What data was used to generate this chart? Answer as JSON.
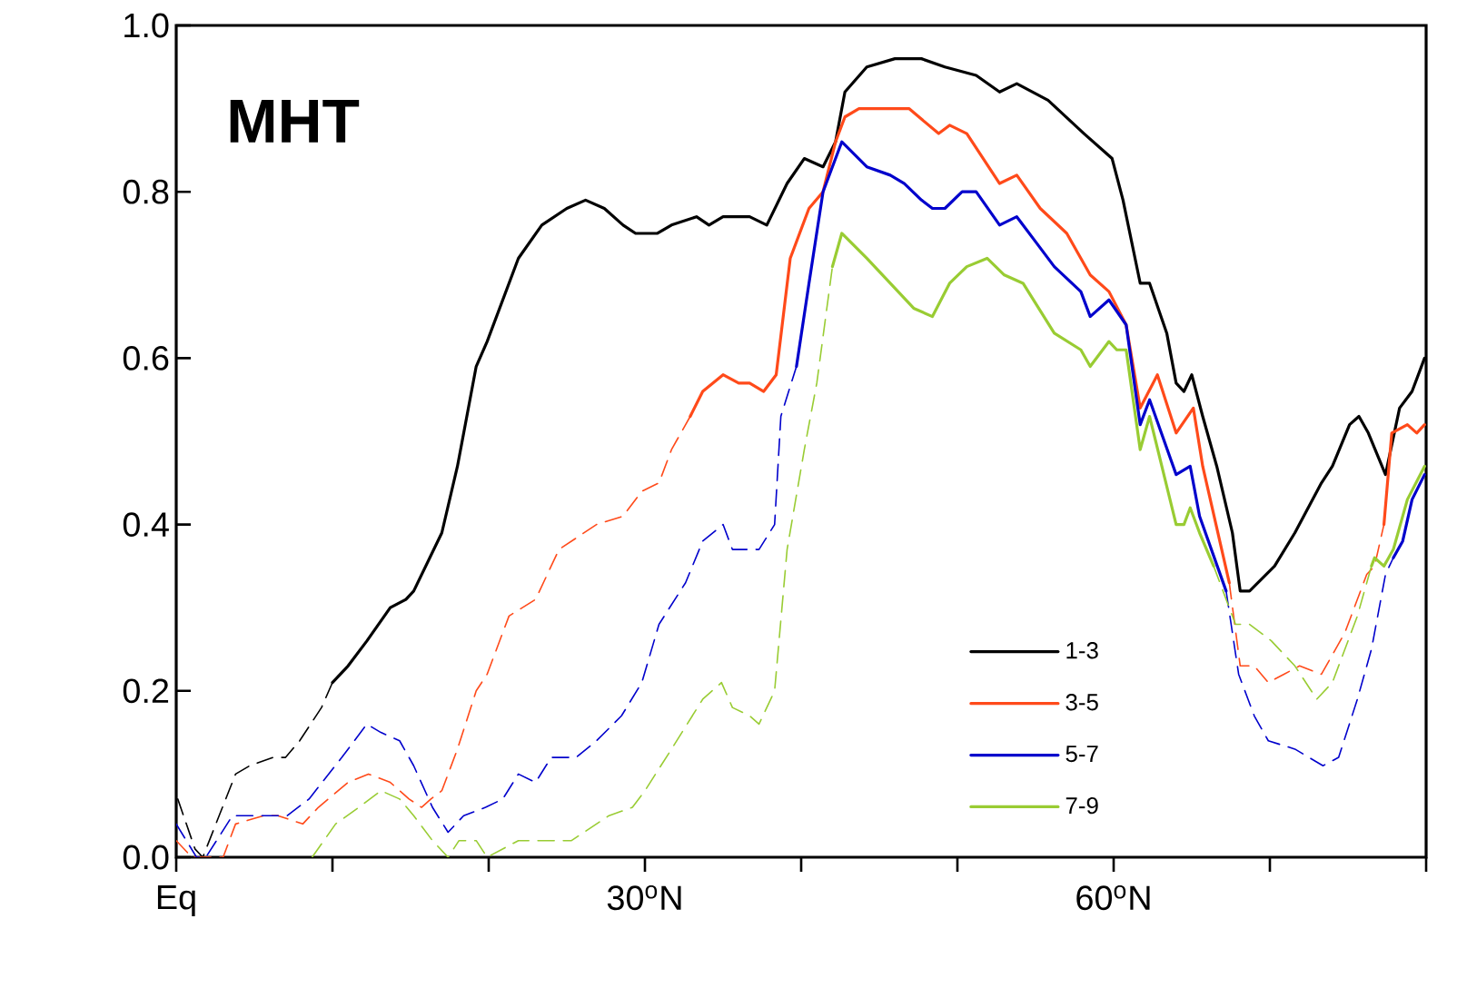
{
  "chart_data": {
    "type": "line",
    "annotations": [
      "MHT"
    ],
    "xlim": [
      0,
      80
    ],
    "xticks": [
      {
        "value": 0,
        "label": "Eq"
      },
      {
        "value": 10,
        "label": null
      },
      {
        "value": 20,
        "label": null
      },
      {
        "value": 30,
        "label": "30$^{o}$N"
      },
      {
        "value": 40,
        "label": null
      },
      {
        "value": 50,
        "label": null
      },
      {
        "value": 60,
        "label": "60$^{o}$N"
      },
      {
        "value": 70,
        "label": null
      },
      {
        "value": 80,
        "label": null
      }
    ],
    "ylim": [
      0,
      1
    ],
    "yticks": [
      {
        "value": 0,
        "label": "0.0"
      },
      0.2,
      0.4,
      0.6,
      0.8,
      {
        "value": 1,
        "label": "1.0"
      }
    ],
    "legend": "bottom right",
    "series": [
      {
        "name": "1-3",
        "color": "#000000",
        "line_style": "solid",
        "x": [
          10.0,
          11.0,
          12.2,
          13.7,
          14.7,
          15.2,
          17.0,
          18.0,
          19.2,
          19.9,
          21.9,
          23.4,
          25.0,
          26.2,
          27.4,
          28.6,
          29.4,
          30.8,
          31.7,
          33.3,
          34.1,
          35.0,
          36.7,
          37.8,
          39.1,
          40.2,
          41.4,
          42.2,
          42.8,
          44.2,
          46.0,
          47.7,
          49.2,
          51.2,
          52.7,
          53.8,
          55.8,
          58.1,
          59.9,
          60.6,
          61.7,
          62.3,
          63.4,
          64.0,
          64.5,
          65.0,
          65.7,
          66.6,
          67.6,
          68.1,
          68.7,
          70.3,
          71.6,
          73.3,
          74.0,
          75.1,
          75.7,
          76.3,
          77.4,
          78.3,
          79.1,
          79.9
        ],
        "values": [
          0.21,
          0.23,
          0.26,
          0.3,
          0.31,
          0.32,
          0.39,
          0.47,
          0.59,
          0.62,
          0.72,
          0.76,
          0.78,
          0.79,
          0.78,
          0.76,
          0.75,
          0.75,
          0.76,
          0.77,
          0.76,
          0.77,
          0.77,
          0.76,
          0.81,
          0.84,
          0.83,
          0.86,
          0.92,
          0.95,
          0.96,
          0.96,
          0.95,
          0.94,
          0.92,
          0.93,
          0.91,
          0.87,
          0.84,
          0.79,
          0.69,
          0.69,
          0.63,
          0.57,
          0.56,
          0.58,
          0.53,
          0.47,
          0.39,
          0.32,
          0.32,
          0.35,
          0.39,
          0.45,
          0.47,
          0.52,
          0.53,
          0.51,
          0.46,
          0.54,
          0.56,
          0.6
        ]
      },
      {
        "color": "#000000",
        "line_style": "dashed",
        "x": [
          0.1,
          1.2,
          1.7,
          3.8,
          4.7,
          6.2,
          7.0,
          7.9,
          9.3,
          10.0
        ],
        "values": [
          0.07,
          0.01,
          0,
          0.1,
          0.11,
          0.12,
          0.12,
          0.14,
          0.18,
          0.21
        ]
      },
      {
        "name": "3-5",
        "color": "#ff4a1a",
        "line_style": "solid",
        "x": [
          32.9,
          33.7,
          35.0,
          36.0,
          36.7,
          37.6,
          38.4,
          39.3,
          40.5,
          41.4,
          42.2,
          42.8,
          43.7,
          46.9,
          48.8,
          49.5,
          50.6,
          52.7,
          53.8,
          55.3,
          57.0,
          58.5,
          59.7,
          60.8,
          61.7,
          62.8,
          64.0,
          65.1,
          65.7,
          67.4
        ],
        "values": [
          0.53,
          0.56,
          0.58,
          0.57,
          0.57,
          0.56,
          0.58,
          0.72,
          0.78,
          0.8,
          0.86,
          0.89,
          0.9,
          0.9,
          0.87,
          0.88,
          0.87,
          0.81,
          0.82,
          0.78,
          0.75,
          0.7,
          0.68,
          0.64,
          0.54,
          0.58,
          0.51,
          0.54,
          0.47,
          0.33
        ]
      },
      {
        "color": "#ff4a1a",
        "line_style": "dashed",
        "x": [
          0.0,
          1.0,
          3.0,
          3.8,
          5.6,
          6.5,
          8.1,
          9.1,
          11.0,
          12.3,
          13.7,
          14.9,
          15.7,
          16.3,
          17.0,
          18.0,
          19.2,
          19.9,
          21.3,
          23.0,
          24.5,
          26.9,
          28.6,
          29.8,
          30.9,
          31.7,
          32.9
        ],
        "values": [
          0.02,
          0,
          0,
          0.04,
          0.05,
          0.05,
          0.04,
          0.06,
          0.09,
          0.1,
          0.09,
          0.07,
          0.06,
          0.07,
          0.08,
          0.13,
          0.2,
          0.22,
          0.29,
          0.31,
          0.37,
          0.4,
          0.41,
          0.44,
          0.45,
          0.49,
          0.53
        ]
      },
      {
        "color": "#ff4a1a",
        "line_style": "dashed",
        "x": [
          67.4,
          68.1,
          69.0,
          69.9,
          70.9,
          71.9,
          73.3,
          74.8,
          76.2,
          76.7,
          77.3
        ],
        "values": [
          0.33,
          0.23,
          0.23,
          0.21,
          0.22,
          0.23,
          0.22,
          0.27,
          0.34,
          0.35,
          0.4
        ]
      },
      {
        "color": "#ff4a1a",
        "line_style": "solid",
        "x": [
          77.3,
          77.8,
          78.8,
          79.4,
          79.9
        ],
        "values": [
          0.4,
          0.51,
          0.52,
          0.51,
          0.52
        ]
      },
      {
        "name": "5-7",
        "color": "#0000cc",
        "line_style": "solid",
        "x": [
          39.7,
          40.5,
          41.4,
          42.6,
          44.2,
          45.7,
          46.6,
          47.7,
          48.4,
          49.2,
          50.3,
          51.2,
          52.7,
          53.8,
          55.0,
          56.2,
          57.9,
          58.5,
          59.7,
          60.8,
          61.7,
          62.3,
          64.0,
          64.9,
          65.5,
          67.2
        ],
        "values": [
          0.59,
          0.69,
          0.8,
          0.86,
          0.83,
          0.82,
          0.81,
          0.79,
          0.78,
          0.78,
          0.8,
          0.8,
          0.76,
          0.77,
          0.74,
          0.71,
          0.68,
          0.65,
          0.67,
          0.64,
          0.52,
          0.55,
          0.46,
          0.47,
          0.41,
          0.32
        ]
      },
      {
        "color": "#0000cc",
        "line_style": "dashed",
        "x": [
          0.0,
          1.3,
          1.9,
          3.6,
          5.2,
          7.1,
          8.5,
          10.6,
          12.2,
          13.1,
          14.3,
          15.2,
          16.4,
          17.4,
          18.4,
          19.8,
          20.9,
          21.9,
          23.0,
          24.0,
          25.6,
          26.9,
          28.5,
          29.8,
          30.9,
          32.6,
          33.7,
          35.0,
          35.6,
          36.7,
          37.3,
          38.3,
          38.7,
          39.7
        ],
        "values": [
          0.04,
          0,
          0,
          0.05,
          0.05,
          0.05,
          0.07,
          0.12,
          0.16,
          0.15,
          0.14,
          0.11,
          0.06,
          0.03,
          0.05,
          0.06,
          0.07,
          0.1,
          0.09,
          0.12,
          0.12,
          0.14,
          0.17,
          0.21,
          0.28,
          0.33,
          0.38,
          0.4,
          0.37,
          0.37,
          0.37,
          0.4,
          0.53,
          0.59
        ]
      },
      {
        "color": "#0000cc",
        "line_style": "dashed",
        "x": [
          67.2,
          68.0,
          69.0,
          69.9,
          71.6,
          73.4,
          74.4,
          75.6,
          76.5,
          77.4,
          77.9
        ],
        "values": [
          0.32,
          0.22,
          0.17,
          0.14,
          0.13,
          0.11,
          0.12,
          0.19,
          0.25,
          0.34,
          0.36
        ]
      },
      {
        "color": "#0000cc",
        "line_style": "solid",
        "x": [
          77.9,
          78.5,
          79.1,
          79.9
        ],
        "values": [
          0.36,
          0.38,
          0.43,
          0.46
        ]
      },
      {
        "name": "7-9",
        "color": "#99cc33",
        "line_style": "solid",
        "x": [
          42.0,
          42.6,
          44.2,
          45.7,
          47.2,
          48.4,
          49.5,
          50.6,
          51.9,
          53.0,
          54.2,
          56.2,
          57.9,
          58.5,
          59.7,
          60.2,
          60.8,
          61.7,
          62.3,
          64.0,
          64.5,
          64.9,
          65.5,
          66.4
        ],
        "values": [
          0.71,
          0.75,
          0.72,
          0.69,
          0.66,
          0.65,
          0.69,
          0.71,
          0.72,
          0.7,
          0.69,
          0.63,
          0.61,
          0.59,
          0.62,
          0.61,
          0.61,
          0.49,
          0.53,
          0.4,
          0.4,
          0.42,
          0.39,
          0.35
        ]
      },
      {
        "color": "#99cc33",
        "line_style": "dashed",
        "x": [
          8.7,
          10.2,
          11.7,
          13.1,
          14.3,
          15.2,
          16.4,
          17.4,
          18.1,
          19.2,
          19.9,
          21.9,
          23.4,
          25.3,
          27.7,
          29.2,
          30.0,
          31.7,
          33.7,
          34.9,
          35.6,
          36.7,
          37.3,
          38.3,
          39.1,
          40.2,
          41.0,
          42.0
        ],
        "values": [
          0,
          0.04,
          0.06,
          0.08,
          0.07,
          0.05,
          0.02,
          0,
          0.02,
          0.02,
          0,
          0.02,
          0.02,
          0.02,
          0.05,
          0.06,
          0.08,
          0.13,
          0.19,
          0.21,
          0.18,
          0.17,
          0.16,
          0.2,
          0.37,
          0.49,
          0.57,
          0.71
        ]
      },
      {
        "color": "#99cc33",
        "line_style": "dashed",
        "x": [
          66.4,
          67.8,
          68.7,
          70.1,
          71.6,
          73.0,
          74.0,
          75.6,
          76.5
        ],
        "values": [
          0.35,
          0.28,
          0.28,
          0.26,
          0.23,
          0.19,
          0.21,
          0.29,
          0.35
        ]
      },
      {
        "color": "#99cc33",
        "line_style": "solid",
        "x": [
          76.5,
          76.7,
          77.3,
          77.9,
          78.8,
          79.9
        ],
        "values": [
          0.35,
          0.36,
          0.35,
          0.37,
          0.43,
          0.47
        ]
      }
    ]
  }
}
